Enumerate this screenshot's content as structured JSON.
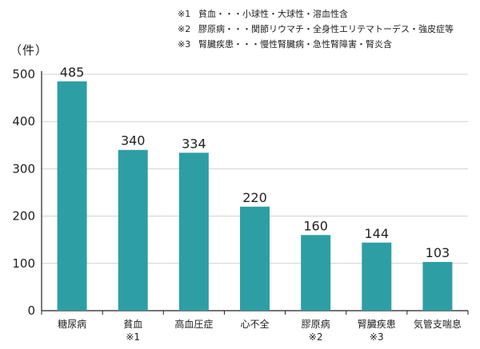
{
  "notes": [
    {
      "mark": "※1",
      "text": "貧血・・・小球性・大球性・溶血性含"
    },
    {
      "mark": "※2",
      "text": "膠原病・・・関節リウマチ・全身性エリテマトーデス・強皮症等"
    },
    {
      "mark": "※3",
      "text": "腎臓疾患・・・慢性腎臓病・急性腎障害・腎炎含"
    }
  ],
  "unit_label": "（件）",
  "colors": {
    "bar": "#2e9ea5",
    "axis": "#222222",
    "grid": "#d0d0d0"
  },
  "chart_data": {
    "type": "bar",
    "categories": [
      "糖尿病",
      "貧血",
      "高血圧症",
      "心不全",
      "膠原病",
      "腎臓疾患",
      "気管支喘息"
    ],
    "category_notes": [
      "",
      "※1",
      "",
      "",
      "※2",
      "※3",
      ""
    ],
    "values": [
      485,
      340,
      334,
      220,
      160,
      144,
      103
    ],
    "ylim": [
      0,
      500
    ],
    "yticks": [
      0,
      100,
      200,
      300,
      400,
      500
    ],
    "grid": true,
    "title": "",
    "xlabel": "",
    "ylabel": "（件）"
  }
}
